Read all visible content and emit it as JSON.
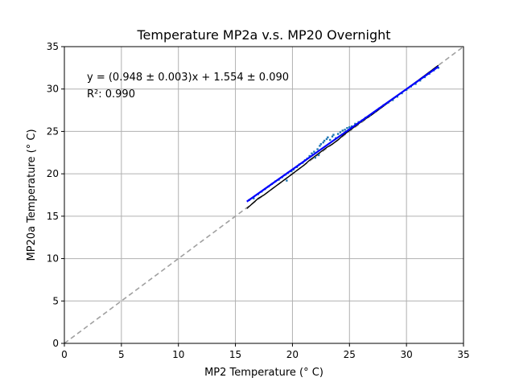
{
  "chart_data": {
    "type": "scatter",
    "title": "Temperature MP2a v.s. MP20 Overnight",
    "xlabel": "MP2 Temperature (° C)",
    "ylabel": "MP20a Temperature (° C)",
    "xlim": [
      0,
      35
    ],
    "ylim": [
      0,
      35
    ],
    "xticks": [
      "0",
      "5",
      "10",
      "15",
      "20",
      "25",
      "30",
      "35"
    ],
    "yticks": [
      "0",
      "5",
      "10",
      "15",
      "20",
      "25",
      "30",
      "35"
    ],
    "grid": true,
    "annotations": {
      "equation": "y = (0.948 ± 0.003)x + 1.554 ± 0.090",
      "r_squared": "R²: 0.990"
    },
    "identity_line": {
      "x": [
        0,
        35
      ],
      "y": [
        0,
        35
      ],
      "color": "#a0a0a0",
      "style": "dashed"
    },
    "fit_line": {
      "slope": 0.948,
      "intercept": 1.554,
      "x_range": [
        16,
        32.8
      ],
      "color": "#0000ff"
    },
    "series": [
      {
        "color": "#1f77b4",
        "x": [
          16.2,
          16.6,
          17.0,
          17.3,
          17.6,
          17.9,
          18.2,
          18.5,
          18.8,
          19.1,
          19.4,
          19.5,
          19.6,
          19.9,
          20.1,
          20.4,
          20.6,
          20.9,
          21.1,
          21.3,
          21.5,
          21.7,
          21.9,
          22.0,
          22.2,
          22.3,
          22.4,
          22.5,
          22.7,
          22.8,
          23.0,
          23.1,
          23.3,
          23.5,
          23.6,
          23.8,
          24.0,
          24.2,
          24.4,
          24.6,
          24.8,
          25.0,
          25.2,
          25.5,
          25.8,
          26.1,
          26.4,
          26.8,
          27.2,
          27.6,
          28.0,
          28.4,
          28.8,
          29.2,
          29.6,
          30.0,
          30.4,
          30.8,
          31.2,
          31.6,
          32.0,
          32.4,
          32.8
        ],
        "y": [
          16.9,
          17.1,
          17.6,
          17.9,
          18.2,
          18.5,
          18.8,
          19.1,
          19.3,
          19.6,
          19.9,
          19.2,
          20.1,
          20.3,
          20.5,
          20.8,
          21.1,
          21.3,
          21.6,
          21.8,
          22.1,
          22.4,
          22.6,
          21.9,
          22.9,
          22.2,
          23.3,
          23.5,
          23.7,
          23.9,
          24.1,
          24.3,
          24.0,
          24.4,
          24.6,
          24.2,
          24.7,
          24.9,
          25.1,
          25.2,
          25.4,
          25.5,
          25.6,
          25.9,
          26.1,
          26.3,
          26.6,
          26.9,
          27.3,
          27.7,
          28.1,
          28.4,
          28.7,
          29.1,
          29.5,
          29.9,
          30.3,
          30.6,
          31.0,
          31.4,
          31.8,
          32.2,
          32.5
        ]
      },
      {
        "color": "#000000",
        "x": [
          16.0,
          16.5,
          17.0,
          17.5,
          18.0,
          18.5,
          19.0,
          19.5,
          20.0,
          20.5,
          21.0,
          21.5,
          22.0,
          22.5,
          23.0,
          23.5,
          24.0,
          24.5,
          25.0,
          26.0,
          27.0,
          28.0,
          29.0,
          30.0,
          31.0,
          32.0,
          32.8
        ],
        "y": [
          15.9,
          16.5,
          17.1,
          17.5,
          18.0,
          18.5,
          19.0,
          19.5,
          20.0,
          20.5,
          21.0,
          21.6,
          22.1,
          22.6,
          23.1,
          23.5,
          24.0,
          24.6,
          25.1,
          26.1,
          27.0,
          28.0,
          29.0,
          30.0,
          31.0,
          32.0,
          32.8
        ]
      }
    ]
  }
}
